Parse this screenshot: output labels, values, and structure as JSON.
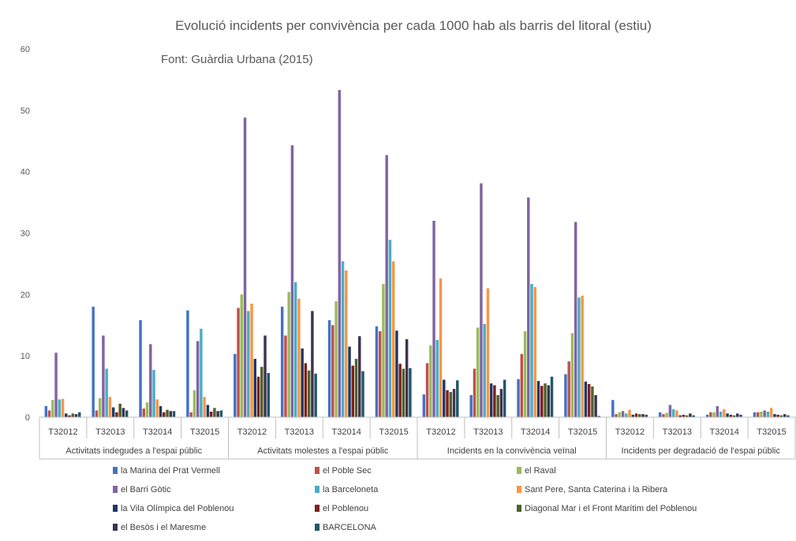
{
  "chart_data": {
    "type": "bar",
    "title": "Evolució incidents per convivència per cada 1000 hab als barris del litoral (estiu)",
    "subtitle": "Font: Guàrdia Urbana (2015)",
    "xlabel": "",
    "ylabel": "",
    "ylim": [
      0,
      60
    ],
    "yticks": [
      0,
      10,
      20,
      30,
      40,
      50,
      60
    ],
    "grid": false,
    "legend_position": "bottom",
    "groups": [
      "Activitats indegudes a l'espai públic",
      "Activitats molestes a l'espai públic",
      "Incidents en la convivència veïnal",
      "Incidents per degradació de l'espai públic"
    ],
    "categories": [
      "T32012",
      "T32013",
      "T32014",
      "T32015",
      "T32012",
      "T32013",
      "T32014",
      "T32015",
      "T32012",
      "T32013",
      "T32014",
      "T32015",
      "T32012",
      "T32013",
      "T32014",
      "T32015"
    ],
    "series": [
      {
        "name": "la Marina del Prat Vermell",
        "color": "#4472c4",
        "values": [
          1.8,
          18.0,
          15.8,
          17.4,
          10.3,
          18.0,
          15.8,
          14.8,
          3.7,
          3.6,
          6.2,
          7.0,
          2.8,
          0.8,
          0.4,
          0.8
        ]
      },
      {
        "name": "el Poble Sec",
        "color": "#c0504d",
        "values": [
          1.1,
          1.1,
          1.4,
          0.8,
          17.8,
          13.3,
          15.0,
          14.0,
          8.8,
          7.9,
          10.3,
          9.1,
          0.5,
          0.5,
          0.8,
          0.8
        ]
      },
      {
        "name": "el Raval",
        "color": "#9bbb59",
        "values": [
          2.8,
          3.1,
          2.4,
          4.4,
          20.0,
          20.4,
          18.9,
          21.7,
          11.7,
          14.6,
          14.0,
          13.7,
          0.8,
          0.7,
          0.8,
          0.9
        ]
      },
      {
        "name": "el Barri Gòtic",
        "color": "#8064a2",
        "values": [
          10.5,
          13.3,
          11.9,
          12.4,
          48.8,
          44.3,
          53.3,
          42.7,
          32.0,
          38.1,
          35.8,
          31.8,
          1.0,
          2.0,
          1.8,
          1.1
        ]
      },
      {
        "name": "la Barceloneta",
        "color": "#4bacc6",
        "values": [
          2.9,
          7.9,
          7.7,
          14.4,
          17.3,
          22.0,
          25.4,
          28.9,
          12.6,
          15.2,
          21.7,
          19.5,
          0.6,
          1.3,
          0.9,
          0.9
        ]
      },
      {
        "name": "Sant Pere, Santa Caterina i la Ribera",
        "color": "#f79646",
        "values": [
          3.0,
          3.3,
          2.9,
          3.3,
          18.5,
          19.3,
          23.9,
          25.4,
          22.6,
          21.0,
          21.2,
          19.8,
          1.2,
          1.1,
          1.3,
          1.5
        ]
      },
      {
        "name": "la Vila Olímpica del Poblenou",
        "color": "#1f3864",
        "values": [
          0.6,
          1.6,
          1.8,
          2.0,
          9.5,
          11.2,
          11.5,
          14.1,
          6.1,
          5.5,
          5.9,
          5.8,
          0.4,
          0.3,
          0.6,
          0.5
        ]
      },
      {
        "name": "el Poblenou",
        "color": "#7f1f1c",
        "values": [
          0.3,
          0.8,
          0.8,
          0.9,
          6.6,
          8.8,
          8.4,
          8.7,
          4.4,
          5.2,
          5.1,
          5.4,
          0.6,
          0.4,
          0.4,
          0.4
        ]
      },
      {
        "name": "Diagonal Mar i el Front Marítim del Poblenou",
        "color": "#4f6228",
        "values": [
          0.6,
          2.2,
          1.2,
          1.5,
          8.2,
          7.6,
          9.5,
          7.9,
          4.1,
          3.6,
          5.5,
          5.0,
          0.5,
          0.3,
          0.3,
          0.3
        ]
      },
      {
        "name": "el Besòs i el Maresme",
        "color": "#3f3151",
        "values": [
          0.5,
          1.5,
          1.0,
          1.0,
          13.3,
          17.3,
          13.2,
          12.7,
          4.6,
          4.6,
          5.2,
          3.6,
          0.5,
          0.6,
          0.6,
          0.5
        ]
      },
      {
        "name": "BARCELONA",
        "color": "#215868",
        "values": [
          0.8,
          1.1,
          1.0,
          1.1,
          7.2,
          7.1,
          7.5,
          8.0,
          6.0,
          6.1,
          6.6,
          0.2,
          0.4,
          0.3,
          0.4,
          0.3
        ]
      }
    ]
  }
}
